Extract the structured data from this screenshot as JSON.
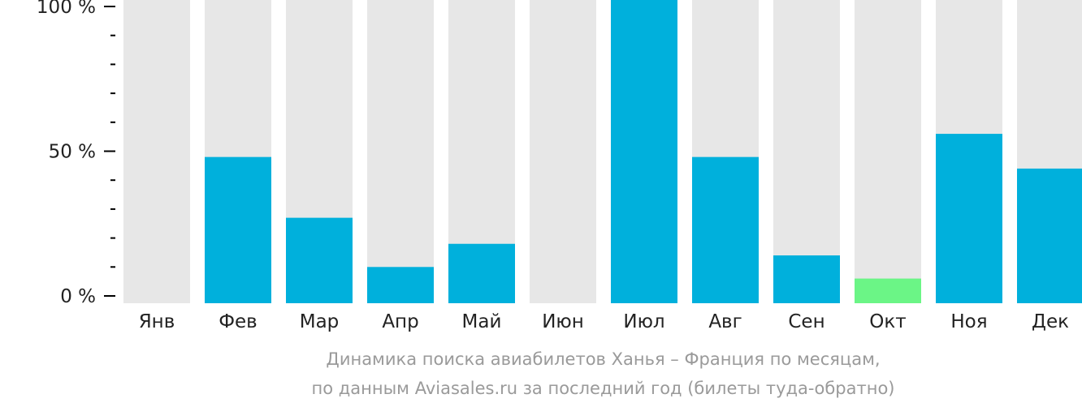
{
  "chart_data": {
    "type": "bar",
    "categories": [
      "Янв",
      "Фев",
      "Мар",
      "Апр",
      "Май",
      "Июн",
      "Июл",
      "Авг",
      "Сен",
      "Окт",
      "Ноя",
      "Дек"
    ],
    "values": [
      0,
      48,
      27,
      10,
      18,
      0,
      100,
      48,
      14,
      6,
      56,
      44
    ],
    "ylim": [
      0,
      100
    ],
    "yticks": [
      {
        "value": 0,
        "label": "0 %"
      },
      {
        "value": 50,
        "label": "50 %"
      },
      {
        "value": 100,
        "label": "100 %"
      }
    ],
    "minor_tick_step": 10,
    "grid": false,
    "colors": {
      "bar": "#00b0dc",
      "highlight": "#6bf586",
      "background_bar": "#e7e7e7",
      "axis": "#000000",
      "text": "#222222"
    },
    "highlight_index": 9
  },
  "caption": {
    "line1": "Динамика поиска авиабилетов Ханья – Франция по месяцам,",
    "line2": "по данным Aviasales.ru за последний год (билеты туда-обратно)"
  }
}
